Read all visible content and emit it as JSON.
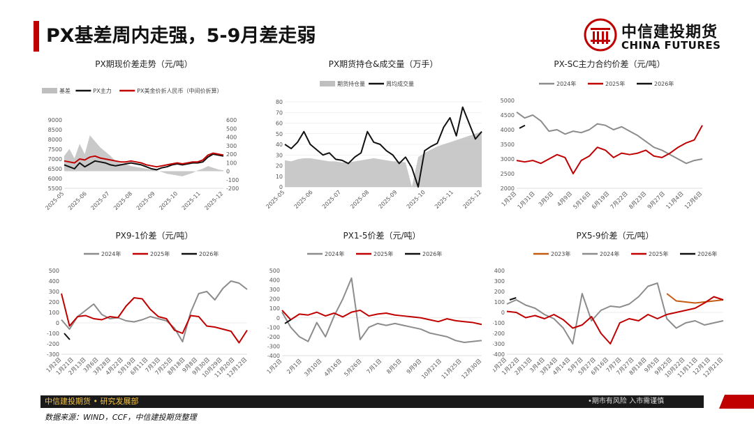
{
  "header": {
    "title": "PX基差周内走强，5-9月差走弱"
  },
  "logo": {
    "cn": "中信建投期货",
    "en": "CHINA FUTURES"
  },
  "footer": {
    "left": "中信建投期货 • 研究发展部",
    "right": "•期市有风险  入市需谨慎",
    "source": "数据来源：WIND，CCF，中信建投期货整理"
  },
  "colors": {
    "gray": "#8c8c8c",
    "red": "#c00000",
    "black": "#111111",
    "orange": "#c55a11",
    "area": "#bfbfbf"
  },
  "chart_data": [
    {
      "id": "basis",
      "type": "line",
      "title": "PX期现价差走势（元/吨）",
      "legend": [
        "基差",
        "PX主力",
        "PX美金价折人民币（中间价折算）"
      ],
      "x_ticks": [
        "2025-05",
        "2025-06",
        "2025-07",
        "2025-08",
        "2025-09",
        "2025-10",
        "2025-11",
        "2025-12"
      ],
      "y_left_ticks": [
        "5500",
        "6000",
        "6500",
        "7000",
        "7500",
        "8000",
        "8500",
        "9000"
      ],
      "ylim_left": [
        5500,
        9000
      ],
      "y_right_ticks": [
        "-200",
        "-100",
        "0",
        "100",
        "200",
        "300",
        "400",
        "500",
        "600"
      ],
      "ylim_right": [
        -200,
        600
      ],
      "series": [
        {
          "name": "基差",
          "axis": "right",
          "kind": "area",
          "values": [
            180,
            260,
            150,
            320,
            200,
            420,
            350,
            280,
            230,
            180,
            120,
            90,
            80,
            60,
            50,
            40,
            30,
            20,
            10,
            -10,
            -30,
            -40,
            -50,
            -60,
            -40,
            -20,
            10,
            30,
            60,
            40,
            20,
            10
          ]
        },
        {
          "name": "PX主力",
          "axis": "left",
          "values": [
            6700,
            6600,
            6500,
            6800,
            6600,
            6750,
            6900,
            6850,
            6800,
            6700,
            6650,
            6700,
            6750,
            6800,
            6750,
            6700,
            6600,
            6500,
            6450,
            6550,
            6600,
            6700,
            6750,
            6700,
            6750,
            6800,
            6800,
            6850,
            7100,
            7250,
            7200,
            7150
          ]
        },
        {
          "name": "PX美金价折人民币（中间价折算）",
          "axis": "left",
          "values": [
            6900,
            6850,
            6800,
            7000,
            6950,
            7100,
            7150,
            7050,
            7000,
            6950,
            6900,
            6850,
            6850,
            6900,
            6850,
            6800,
            6700,
            6650,
            6600,
            6650,
            6700,
            6750,
            6800,
            6750,
            6800,
            6850,
            6850,
            6950,
            7200,
            7300,
            7250,
            7200
          ]
        }
      ]
    },
    {
      "id": "holdings",
      "type": "line",
      "title": "PX期货持仓&成交量（万手）",
      "legend": [
        "期货持仓量",
        "周均成交量"
      ],
      "x_ticks": [
        "2025-05",
        "2025-06",
        "2025-07",
        "2025-08",
        "2025-09",
        "2025-10",
        "2025-11",
        "2025-12"
      ],
      "y_ticks": [
        "0",
        "10",
        "20",
        "30",
        "40",
        "50",
        "60",
        "70",
        "80"
      ],
      "ylim": [
        0,
        80
      ],
      "series": [
        {
          "name": "期货持仓量",
          "kind": "area",
          "values": [
            25,
            24,
            26,
            27,
            27,
            26,
            25,
            24,
            24,
            23,
            23,
            24,
            25,
            26,
            27,
            26,
            25,
            24,
            24,
            23,
            0,
            28,
            32,
            35,
            38,
            40,
            42,
            44,
            46,
            48,
            50,
            52
          ]
        },
        {
          "name": "周均成交量",
          "values": [
            40,
            36,
            42,
            52,
            40,
            35,
            30,
            32,
            26,
            25,
            22,
            28,
            32,
            52,
            42,
            40,
            34,
            30,
            22,
            28,
            18,
            0,
            34,
            38,
            41,
            56,
            65,
            48,
            75,
            60,
            45,
            52
          ]
        }
      ]
    },
    {
      "id": "px_sc",
      "type": "line",
      "title": "PX-SC主力合约价差（元/吨）",
      "legend": [
        "2024年",
        "2025年",
        "2026年"
      ],
      "x_ticks": [
        "1月2日",
        "1月31日",
        "3月5日",
        "4月9日",
        "5月16日",
        "6月19日",
        "7月22日",
        "8月23日",
        "9月27日",
        "11月4日",
        "12月6日"
      ],
      "y_ticks": [
        "2000",
        "2500",
        "3000",
        "3500",
        "4000",
        "4500",
        "5000"
      ],
      "ylim": [
        2000,
        5000
      ],
      "series": [
        {
          "name": "2024年",
          "values": [
            4600,
            4400,
            4500,
            4300,
            3950,
            4000,
            3850,
            3950,
            3900,
            4000,
            4200,
            4150,
            4000,
            4100,
            3950,
            3800,
            3600,
            3400,
            3300,
            3150,
            3000,
            2850,
            2950,
            3000
          ]
        },
        {
          "name": "2025年",
          "values": [
            2950,
            2900,
            2950,
            2850,
            3000,
            3150,
            3050,
            2500,
            2950,
            3100,
            3400,
            3300,
            3050,
            3200,
            3150,
            3200,
            3300,
            3100,
            3050,
            3200,
            3400,
            3550,
            3650,
            4150
          ]
        },
        {
          "name": "2026年",
          "values": [
            4050,
            4150
          ]
        }
      ]
    },
    {
      "id": "px9_1",
      "type": "line",
      "title": "PX9-1价差（元/吨）",
      "legend": [
        "2024年",
        "2025年",
        "2026年"
      ],
      "x_ticks": [
        "1月2日",
        "1月21日",
        "2月13日",
        "3月6日",
        "3月28日",
        "4月22日",
        "5月19日",
        "6月11日",
        "7月3日",
        "7月25日",
        "8月18日",
        "9月8日",
        "9月30日",
        "10月29日",
        "11月20日",
        "12月12日"
      ],
      "y_ticks": [
        "-300",
        "-200",
        "-100",
        "0",
        "100",
        "200",
        "300",
        "400",
        "500"
      ],
      "ylim": [
        -300,
        500
      ],
      "series": [
        {
          "name": "2024年",
          "values": [
            30,
            -60,
            60,
            120,
            180,
            80,
            40,
            50,
            20,
            10,
            30,
            60,
            40,
            20,
            -50,
            -180,
            100,
            280,
            300,
            220,
            330,
            400,
            380,
            320
          ]
        },
        {
          "name": "2025年",
          "values": [
            280,
            -30,
            60,
            70,
            40,
            30,
            60,
            50,
            160,
            240,
            230,
            130,
            60,
            40,
            -70,
            -100,
            70,
            60,
            -30,
            -40,
            -60,
            -80,
            -190,
            -70
          ]
        },
        {
          "name": "2026年",
          "values": [
            -100,
            -160
          ]
        }
      ]
    },
    {
      "id": "px1_5",
      "type": "line",
      "title": "PX1-5价差（元/吨）",
      "legend": [
        "2024年",
        "2025年",
        "2026年"
      ],
      "x_ticks": [
        "1月2日",
        "2月1日",
        "3月10日",
        "4月16日",
        "5月26日",
        "7月1日",
        "8月5日",
        "9月9日",
        "10月21日",
        "11月25日",
        "12月30日"
      ],
      "y_ticks": [
        "-400",
        "-300",
        "-200",
        "-100",
        "0",
        "100",
        "200",
        "300",
        "400",
        "500"
      ],
      "ylim": [
        -400,
        500
      ],
      "series": [
        {
          "name": "2024年",
          "values": [
            60,
            -100,
            -200,
            -250,
            -50,
            -200,
            20,
            200,
            420,
            -230,
            -100,
            -60,
            -80,
            -60,
            -80,
            -100,
            -120,
            -160,
            -180,
            -200,
            -240,
            -260,
            -250,
            -240
          ]
        },
        {
          "name": "2025年",
          "values": [
            80,
            -20,
            40,
            30,
            60,
            20,
            50,
            10,
            60,
            80,
            20,
            40,
            50,
            30,
            20,
            10,
            0,
            -20,
            -40,
            -10,
            -30,
            -40,
            -50,
            -70
          ]
        },
        {
          "name": "2026年",
          "values": [
            -60,
            -20
          ]
        }
      ]
    },
    {
      "id": "px5_9",
      "type": "line",
      "title": "PX5-9价差（元/吨）",
      "legend": [
        "2023年",
        "2024年",
        "2025年",
        "2026年"
      ],
      "x_ticks": [
        "1月2日",
        "1月22日",
        "2月13日",
        "3月4日",
        "3月24日",
        "4月14日",
        "5月7日",
        "5月27日",
        "6月16日",
        "7月7日",
        "7月27日",
        "8月18日",
        "9月5日",
        "9月25日",
        "10月22日",
        "11月11日",
        "12月1日",
        "12月21日"
      ],
      "y_ticks": [
        "-400",
        "-300",
        "-200",
        "-100",
        "0",
        "100",
        "200",
        "300",
        "400"
      ],
      "ylim": [
        -400,
        400
      ],
      "series": [
        {
          "name": "2023年",
          "values": [
            null,
            null,
            null,
            null,
            null,
            null,
            null,
            null,
            null,
            null,
            null,
            null,
            null,
            null,
            null,
            null,
            null,
            180,
            110,
            100,
            90,
            100,
            110,
            120
          ]
        },
        {
          "name": "2024年",
          "values": [
            80,
            120,
            70,
            40,
            -20,
            -60,
            -150,
            -300,
            180,
            -80,
            20,
            60,
            50,
            80,
            150,
            250,
            280,
            -60,
            -150,
            -100,
            -80,
            -120,
            -100,
            -80
          ]
        },
        {
          "name": "2025年",
          "values": [
            10,
            0,
            -50,
            -30,
            -60,
            -20,
            -70,
            -150,
            -120,
            -40,
            -200,
            -300,
            -100,
            -60,
            -80,
            -20,
            -60,
            -20,
            0,
            20,
            40,
            90,
            150,
            120
          ]
        },
        {
          "name": "2026年",
          "values": [
            120,
            140
          ]
        }
      ]
    }
  ]
}
